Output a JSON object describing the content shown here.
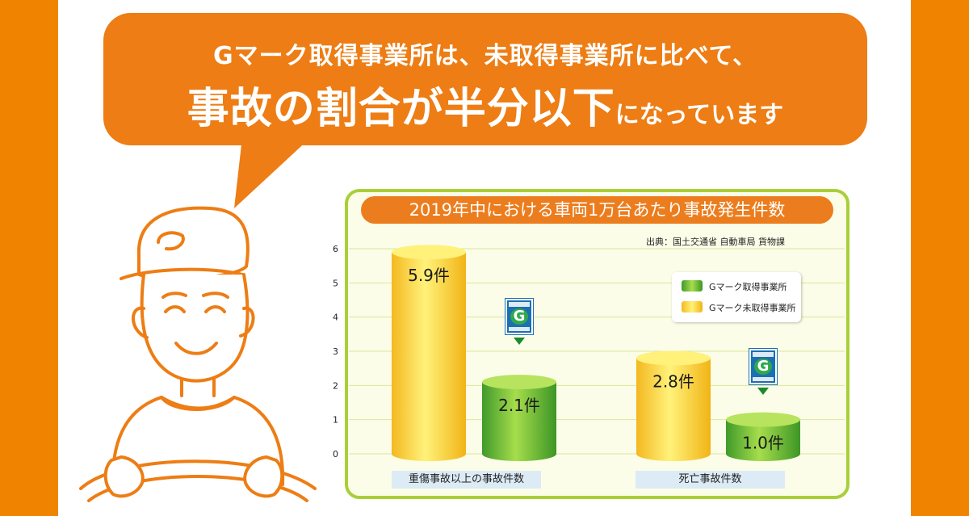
{
  "headline": {
    "line1": "Gマーク取得事業所は、未取得事業所に比べて、",
    "line2_big": "事故の割合が半分以下",
    "line2_small": "になっています"
  },
  "colors": {
    "background_orange": "#f08300",
    "bubble_orange": "#ed7d14",
    "chart_border": "#a9cf38",
    "g_mark_bar": "#5cb531",
    "non_g_mark_bar": "#f7c51c"
  },
  "icons": [
    "person-illustration",
    "g-mark-safety-badge"
  ],
  "chart_data": {
    "type": "bar",
    "title": "2019年中における車両1万台あたり事故発生件数",
    "source": "出典：国土交通省 自動車局 貨物課",
    "categories": [
      "重傷事故以上の事故件数",
      "死亡事故件数"
    ],
    "series": [
      {
        "name": "Gマーク未取得事業所",
        "values": [
          5.9,
          2.8
        ],
        "labels": [
          "5.9件",
          "2.8件"
        ]
      },
      {
        "name": "Gマーク取得事業所",
        "values": [
          2.1,
          1.0
        ],
        "labels": [
          "2.1件",
          "1.0件"
        ]
      }
    ],
    "legend_order": [
      "Gマーク取得事業所",
      "Gマーク未取得事業所"
    ],
    "yticks": [
      "0",
      "1",
      "2",
      "3",
      "4",
      "5",
      "6"
    ],
    "ylim": [
      0,
      6
    ],
    "grid": true,
    "legend_position": "right"
  }
}
